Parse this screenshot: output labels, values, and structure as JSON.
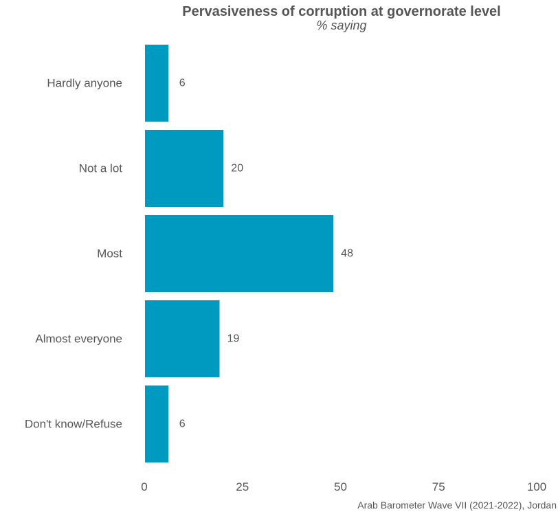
{
  "chart_data": {
    "type": "bar",
    "orientation": "horizontal",
    "title": "Pervasiveness of corruption at governorate level",
    "subtitle": "% saying",
    "caption": "Arab Barometer Wave VII (2021-2022), Jordan",
    "categories": [
      "Hardly anyone",
      "Not a lot",
      "Most",
      "Almost everyone",
      "Don't know/Refuse"
    ],
    "values": [
      6,
      20,
      48,
      19,
      6
    ],
    "data_labels": [
      "6",
      "20",
      "48",
      "19",
      "6"
    ],
    "xlim": [
      0,
      100
    ],
    "x_ticks": [
      0,
      25,
      50,
      75,
      100
    ],
    "x_tick_labels": [
      "0",
      "25",
      "50",
      "75",
      "100"
    ],
    "xlabel": "",
    "ylabel": "",
    "grid": false,
    "legend": "none",
    "bar_color": "#0099BF",
    "text_color": "#555555"
  }
}
